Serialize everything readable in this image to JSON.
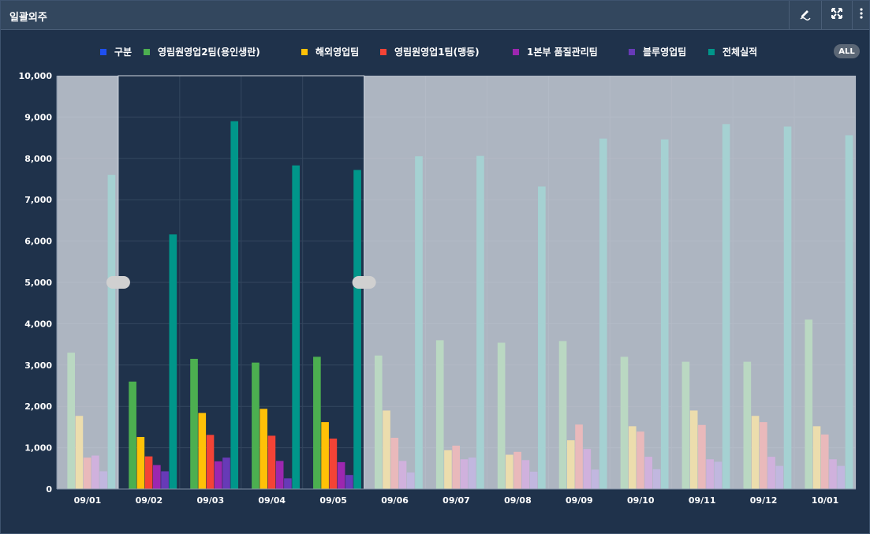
{
  "window": {
    "title": "일괄외주"
  },
  "toolbar": [
    {
      "name": "edit-icon"
    },
    {
      "name": "expand-icon"
    },
    {
      "name": "more-vertical-icon"
    }
  ],
  "legend": {
    "items": [
      {
        "label": "구분",
        "color": "#1e4ff0"
      },
      {
        "label": "영림원영업2팀(용인생란)",
        "color": "#4caf50"
      },
      {
        "label": "해외영업팀",
        "color": "#ffc107"
      },
      {
        "label": "영림원영업1팀(맹동)",
        "color": "#f44336"
      },
      {
        "label": "1본부 품질관리팀",
        "color": "#9c27b0"
      },
      {
        "label": "블루영업팀",
        "color": "#673ab7"
      },
      {
        "label": "전체실적",
        "color": "#00968a"
      }
    ],
    "all_button": "ALL"
  },
  "chart_data": {
    "type": "bar",
    "categories": [
      "09/01",
      "09/02",
      "09/03",
      "09/04",
      "09/05",
      "09/06",
      "09/07",
      "09/08",
      "09/09",
      "09/10",
      "09/11",
      "09/12",
      "10/01"
    ],
    "y_ticks": [
      "0",
      "1,000",
      "2,000",
      "3,000",
      "4,000",
      "5,000",
      "6,000",
      "7,000",
      "8,000",
      "9,000",
      "10,000"
    ],
    "ylim": [
      0,
      10000
    ],
    "selected_range": [
      "09/02",
      "09/05"
    ],
    "series": [
      {
        "name": "구분",
        "color": "#1e4ff0",
        "values": [
          0,
          0,
          0,
          0,
          0,
          0,
          0,
          0,
          0,
          0,
          0,
          0,
          0
        ]
      },
      {
        "name": "영림원영업2팀(용인생란)",
        "color": "#4caf50",
        "values": [
          3300,
          2600,
          3150,
          3060,
          3200,
          3230,
          3600,
          3540,
          3580,
          3200,
          3080,
          3080,
          4100
        ]
      },
      {
        "name": "해외영업팀",
        "color": "#ffc107",
        "values": [
          1770,
          1260,
          1840,
          1940,
          1620,
          1900,
          940,
          830,
          1180,
          1520,
          1900,
          1770,
          1520
        ]
      },
      {
        "name": "영림원영업1팀(맹동)",
        "color": "#f44336",
        "values": [
          760,
          790,
          1310,
          1290,
          1220,
          1240,
          1050,
          900,
          1560,
          1390,
          1550,
          1620,
          1320
        ]
      },
      {
        "name": "1본부 품질관리팀",
        "color": "#9c27b0",
        "values": [
          810,
          580,
          670,
          680,
          650,
          680,
          720,
          700,
          970,
          780,
          720,
          780,
          720
        ]
      },
      {
        "name": "블루영업팀",
        "color": "#673ab7",
        "values": [
          430,
          430,
          760,
          260,
          340,
          400,
          760,
          420,
          470,
          480,
          660,
          560,
          560
        ]
      },
      {
        "name": "전체실적",
        "color": "#00968a",
        "values": [
          7600,
          6160,
          8900,
          7830,
          7720,
          8050,
          8060,
          7320,
          8480,
          8460,
          8830,
          8770,
          8560
        ]
      }
    ]
  }
}
